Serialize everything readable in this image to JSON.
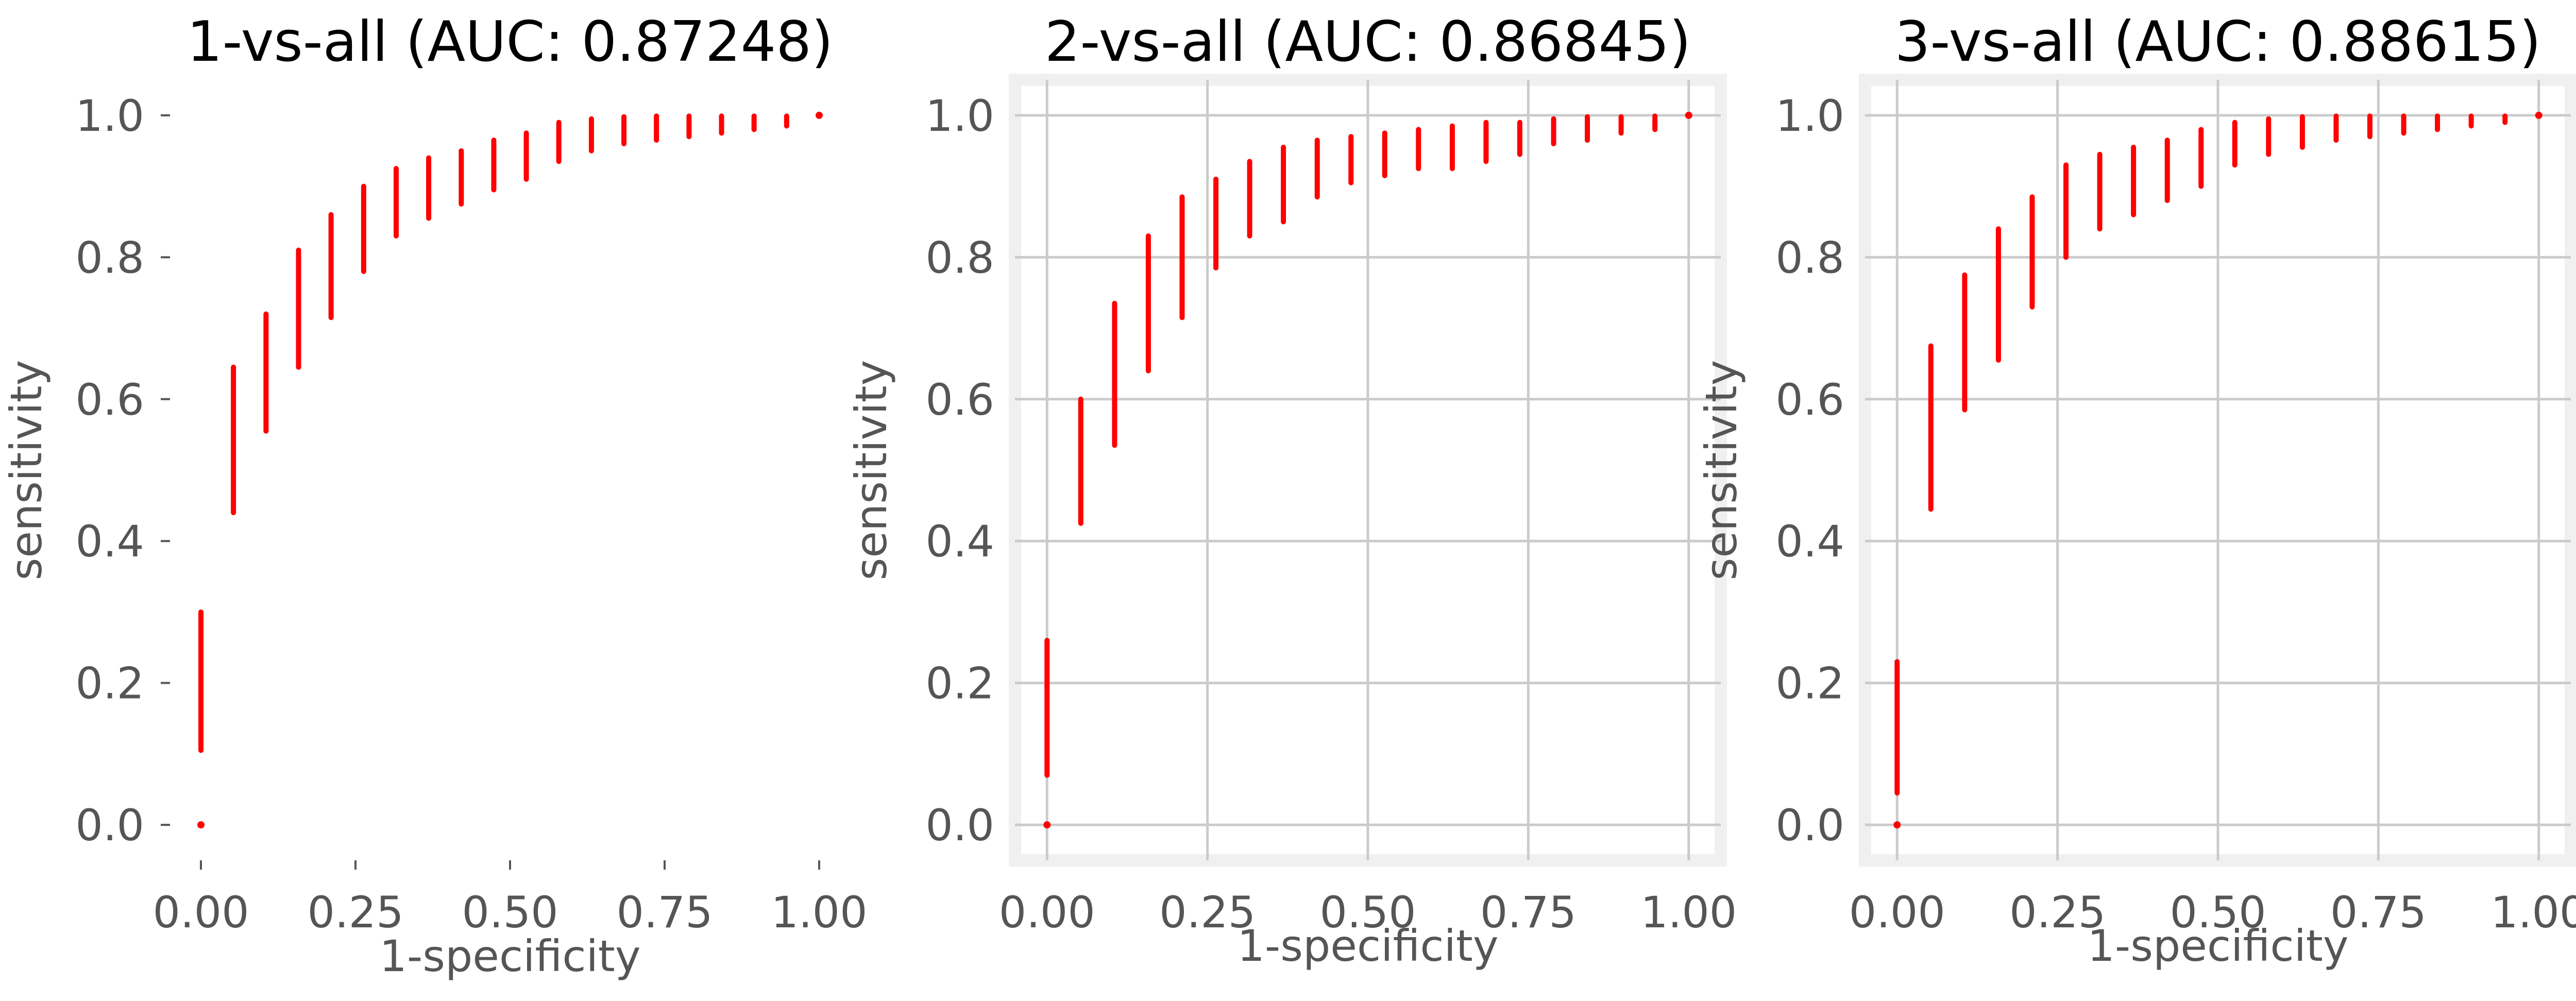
{
  "chart_data": [
    {
      "type": "scatter",
      "title": "1-vs-all (AUC: 0.87248)",
      "xlabel": "1-specificity",
      "ylabel": "sensitivity",
      "xlim": [
        -0.05,
        1.05
      ],
      "ylim": [
        -0.05,
        1.05
      ],
      "xticks": [
        "0.00",
        "0.25",
        "0.50",
        "0.75",
        "1.00"
      ],
      "yticks": [
        "0.0",
        "0.2",
        "0.4",
        "0.6",
        "0.8",
        "1.0"
      ],
      "grid": false,
      "marker_color": "#ff0000",
      "series": [
        {
          "x": [
            0.0,
            0.0,
            0.0526,
            0.1053,
            0.1579,
            0.2105,
            0.2632,
            0.3158,
            0.3684,
            0.4211,
            0.4737,
            0.5263,
            0.5789,
            0.6316,
            0.6842,
            0.7368,
            0.7895,
            0.8421,
            0.8947,
            0.9474,
            1.0
          ],
          "y_min": [
            0.0,
            0.105,
            0.44,
            0.555,
            0.645,
            0.715,
            0.78,
            0.83,
            0.855,
            0.875,
            0.895,
            0.91,
            0.935,
            0.95,
            0.96,
            0.965,
            0.97,
            0.975,
            0.98,
            0.985,
            1.0
          ],
          "y_max": [
            0.0,
            0.3,
            0.645,
            0.72,
            0.81,
            0.86,
            0.9,
            0.925,
            0.94,
            0.95,
            0.965,
            0.975,
            0.99,
            0.995,
            0.998,
            0.999,
            0.999,
            0.999,
            0.999,
            0.999,
            1.0
          ]
        }
      ]
    },
    {
      "type": "scatter",
      "title": "2-vs-all (AUC: 0.86845)",
      "xlabel": "1-specificity",
      "ylabel": "sensitivity",
      "xlim": [
        -0.05,
        1.05
      ],
      "ylim": [
        -0.05,
        1.05
      ],
      "xticks": [
        "0.00",
        "0.25",
        "0.50",
        "0.75",
        "1.00"
      ],
      "yticks": [
        "0.0",
        "0.2",
        "0.4",
        "0.6",
        "0.8",
        "1.0"
      ],
      "grid": true,
      "marker_color": "#ff0000",
      "series": [
        {
          "x": [
            0.0,
            0.0,
            0.0526,
            0.1053,
            0.1579,
            0.2105,
            0.2632,
            0.3158,
            0.3684,
            0.4211,
            0.4737,
            0.5263,
            0.5789,
            0.6316,
            0.6842,
            0.7368,
            0.7895,
            0.8421,
            0.8947,
            0.9474,
            1.0
          ],
          "y_min": [
            0.0,
            0.07,
            0.425,
            0.535,
            0.64,
            0.715,
            0.785,
            0.83,
            0.85,
            0.885,
            0.905,
            0.915,
            0.925,
            0.925,
            0.935,
            0.945,
            0.96,
            0.965,
            0.975,
            0.98,
            1.0
          ],
          "y_max": [
            0.0,
            0.26,
            0.6,
            0.735,
            0.83,
            0.885,
            0.91,
            0.935,
            0.955,
            0.965,
            0.97,
            0.975,
            0.98,
            0.985,
            0.99,
            0.99,
            0.995,
            0.998,
            0.998,
            0.999,
            1.0
          ]
        }
      ]
    },
    {
      "type": "scatter",
      "title": "3-vs-all (AUC: 0.88615)",
      "xlabel": "1-specificity",
      "ylabel": "sensitivity",
      "xlim": [
        -0.05,
        1.05
      ],
      "ylim": [
        -0.05,
        1.05
      ],
      "xticks": [
        "0.00",
        "0.25",
        "0.50",
        "0.75",
        "1.00"
      ],
      "yticks": [
        "0.0",
        "0.2",
        "0.4",
        "0.6",
        "0.8",
        "1.0"
      ],
      "grid": true,
      "marker_color": "#ff0000",
      "series": [
        {
          "x": [
            0.0,
            0.0,
            0.0526,
            0.1053,
            0.1579,
            0.2105,
            0.2632,
            0.3158,
            0.3684,
            0.4211,
            0.4737,
            0.5263,
            0.5789,
            0.6316,
            0.6842,
            0.7368,
            0.7895,
            0.8421,
            0.8947,
            0.9474,
            1.0
          ],
          "y_min": [
            0.0,
            0.045,
            0.445,
            0.585,
            0.655,
            0.73,
            0.8,
            0.84,
            0.86,
            0.88,
            0.9,
            0.93,
            0.945,
            0.955,
            0.965,
            0.97,
            0.975,
            0.98,
            0.985,
            0.99,
            1.0
          ],
          "y_max": [
            0.0,
            0.23,
            0.675,
            0.775,
            0.84,
            0.885,
            0.93,
            0.945,
            0.955,
            0.965,
            0.98,
            0.99,
            0.995,
            0.998,
            0.999,
            0.999,
            0.999,
            0.999,
            0.999,
            0.999,
            1.0
          ]
        }
      ]
    }
  ]
}
